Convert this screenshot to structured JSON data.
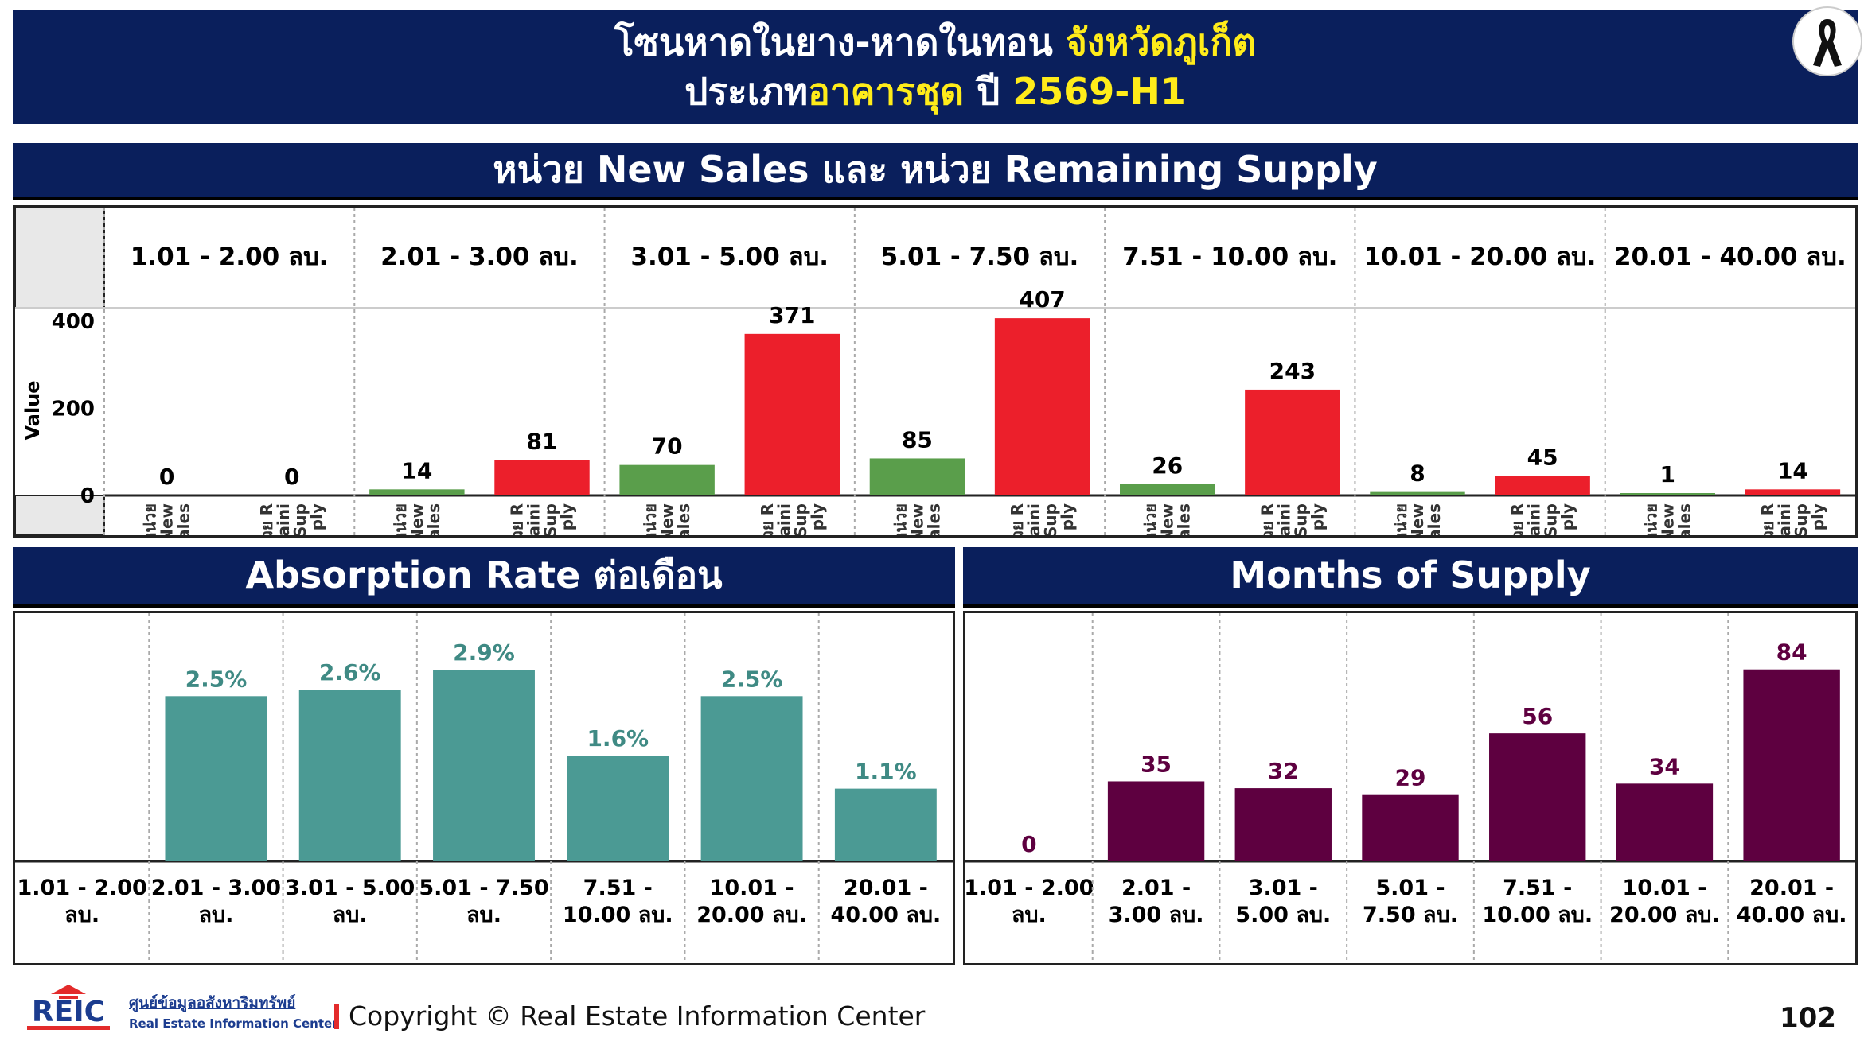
{
  "title": {
    "line1_main": "โซนหาดในยาง-หาดในทอน",
    "line1_highlight": "จังหวัดภูเก็ต",
    "line2_prefix": "ประเภท",
    "line2_highlight": "อาคารชุด",
    "line2_year_label": "ปี",
    "line2_year": "2569-H1"
  },
  "colors": {
    "banner": "#0a1f5c",
    "highlight": "#ffec1a",
    "new_sales": "#5a9e4b",
    "remaining_supply": "#ec1f2b",
    "absorption": "#4b9a94",
    "absorption_label": "#3f8a84",
    "months": "#5e0040"
  },
  "sections": {
    "units_title": "หน่วย New Sales และ หน่วย Remaining Supply",
    "absorption_title": "Absorption Rate ต่อเดือน",
    "months_title": "Months of Supply"
  },
  "chart_data": [
    {
      "type": "bar",
      "title": "หน่วย New Sales และ หน่วย Remaining Supply",
      "ylabel": "Value",
      "yticks": [
        0,
        200,
        400
      ],
      "ylim": [
        0,
        420
      ],
      "groups": [
        "1.01 - 2.00 ลบ.",
        "2.01 - 3.00 ลบ.",
        "3.01 - 5.00 ลบ.",
        "5.01 - 7.50 ลบ.",
        "7.51 - 10.00 ลบ.",
        "10.01 - 20.00 ลบ.",
        "20.01 - 40.00 ลบ."
      ],
      "series": [
        {
          "name": "หน่วย New Sales",
          "tick_lines": [
            "หน่วย",
            "New",
            "Sales"
          ],
          "values": [
            0,
            14,
            70,
            85,
            26,
            8,
            1
          ]
        },
        {
          "name": "หน่วย Remaining Supply",
          "tick_lines": [
            "หน่วย R",
            "emaini",
            "ng Sup",
            "ply"
          ],
          "values": [
            0,
            81,
            371,
            407,
            243,
            45,
            14
          ]
        }
      ]
    },
    {
      "type": "bar",
      "title": "Absorption Rate ต่อเดือน",
      "categories": [
        [
          "1.01 - 2.00",
          "ลบ."
        ],
        [
          "2.01 - 3.00",
          "ลบ."
        ],
        [
          "3.01 - 5.00",
          "ลบ."
        ],
        [
          "5.01 - 7.50",
          "ลบ."
        ],
        [
          "7.51 -",
          "10.00 ลบ."
        ],
        [
          "10.01 -",
          "20.00 ลบ."
        ],
        [
          "20.01 -",
          "40.00 ลบ."
        ]
      ],
      "values": [
        null,
        2.5,
        2.6,
        2.9,
        1.6,
        2.5,
        1.1
      ],
      "labels": [
        "",
        "2.5%",
        "2.6%",
        "2.9%",
        "1.6%",
        "2.5%",
        "1.1%"
      ],
      "unit": "%",
      "ylim": [
        0,
        3.25
      ]
    },
    {
      "type": "bar",
      "title": "Months of Supply",
      "categories": [
        [
          "1.01 - 2.00",
          "ลบ."
        ],
        [
          "2.01 -",
          "3.00 ลบ."
        ],
        [
          "3.01 -",
          "5.00 ลบ."
        ],
        [
          "5.01 -",
          "7.50 ลบ."
        ],
        [
          "7.51 -",
          "10.00 ลบ."
        ],
        [
          "10.01 -",
          "20.00 ลบ."
        ],
        [
          "20.01 -",
          "40.00 ลบ."
        ]
      ],
      "values": [
        0,
        35,
        32,
        29,
        56,
        34,
        84
      ],
      "labels": [
        "0",
        "35",
        "32",
        "29",
        "56",
        "34",
        "84"
      ],
      "ylim": [
        0,
        94
      ]
    }
  ],
  "footer": {
    "logo_text": "REIC",
    "org_th": "ศูนย์ข้อมูลอสังหาริมทรัพย์",
    "org_en": "Real Estate Information Center",
    "copyright": "Copyright © Real Estate Information Center",
    "page_number": "102"
  },
  "icons": {
    "ribbon": "mourning-ribbon-icon"
  }
}
